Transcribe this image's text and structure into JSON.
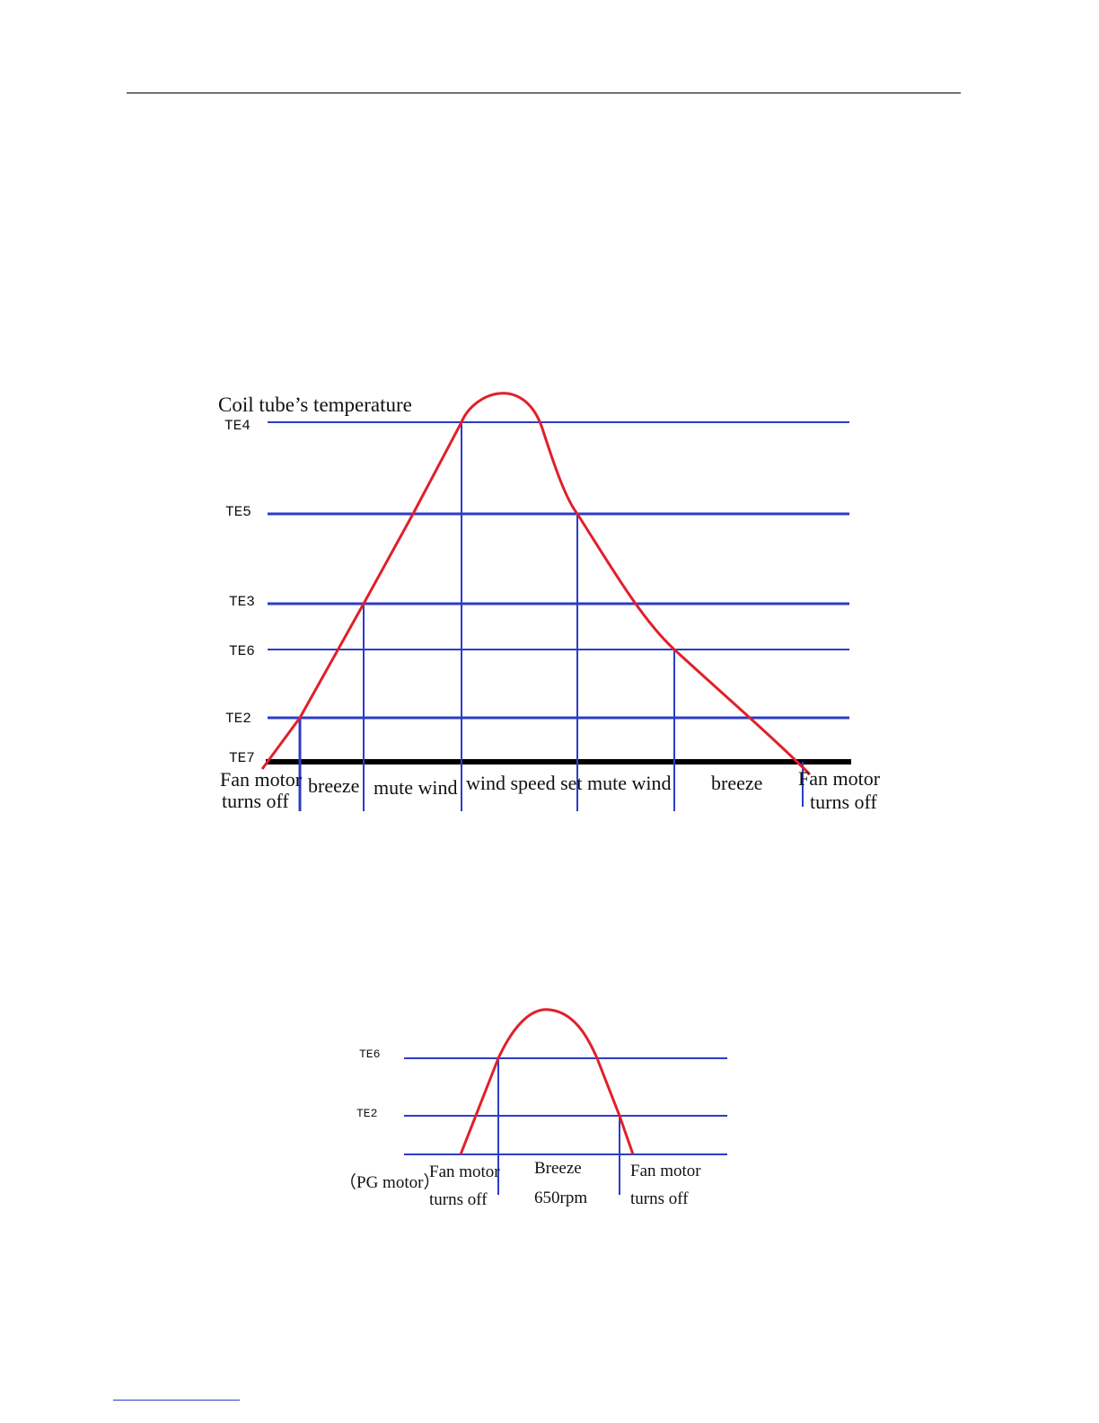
{
  "diagram1": {
    "title": "Coil tube’s temperature",
    "levels": [
      "TE4",
      "TE5",
      "TE3",
      "TE6",
      "TE2",
      "TE7"
    ],
    "zones": [
      "Fan motor\nturns off",
      "breeze",
      "mute wind",
      "wind speed set",
      "mute wind",
      "breeze",
      "Fan motor\nturns off"
    ]
  },
  "diagram2": {
    "levels": [
      "TE6",
      "TE2"
    ],
    "motor_note": "（PG motor）",
    "zones": [
      "Fan motor\nturns off",
      "Breeze\n650rpm",
      "Fan motor\nturns off"
    ]
  },
  "colors": {
    "curve": "#e0202a",
    "lines": "#2c3cc8",
    "baseline": "#000000"
  }
}
